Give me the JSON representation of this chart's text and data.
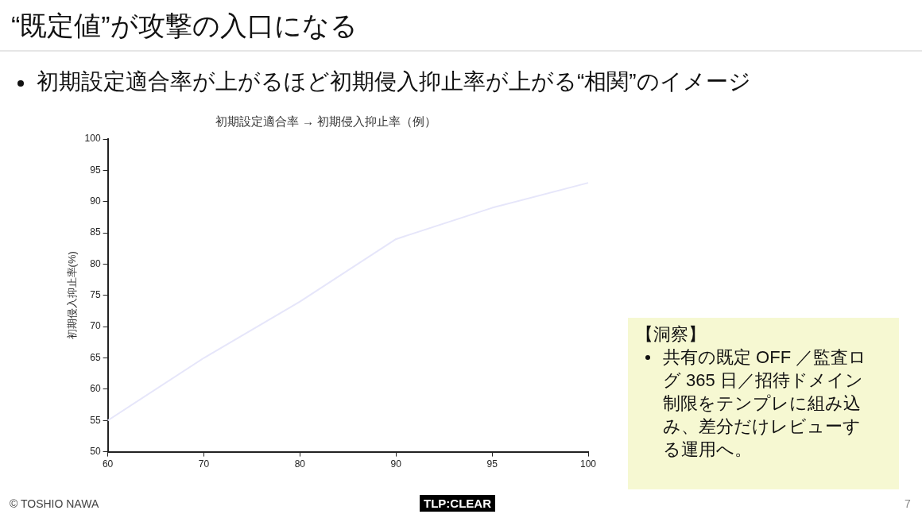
{
  "chart_data": {
    "type": "line",
    "title": "初期設定適合率 → 初期侵入抑止率（例）",
    "ylabel": "初期侵入抑止率(%)",
    "categories": [
      "60",
      "70",
      "80",
      "90",
      "95",
      "100"
    ],
    "series": [
      {
        "color": "#e6e6fa",
        "values": [
          55,
          65,
          74,
          84,
          89,
          93
        ]
      }
    ],
    "ylim": [
      50,
      100
    ],
    "yticks": [
      50,
      55,
      60,
      65,
      70,
      75,
      80,
      85,
      90,
      95,
      100
    ],
    "grid": false,
    "legend": false,
    "marker": "none",
    "line_style": "solid",
    "annotations": [
      "“既定値”が攻撃の入口になる",
      "初期設定適合率が上がるほど初期侵入抑止率が上がる“相関”のイメージ",
      "【洞察】",
      "共有の既定 OFF ／監査ログ 365 日／招待ドメイン制限をテンプレに組み込み、差分だけレビューする運用へ。",
      "© TOSHIO NAWA",
      "TLP:CLEAR",
      "7"
    ]
  }
}
